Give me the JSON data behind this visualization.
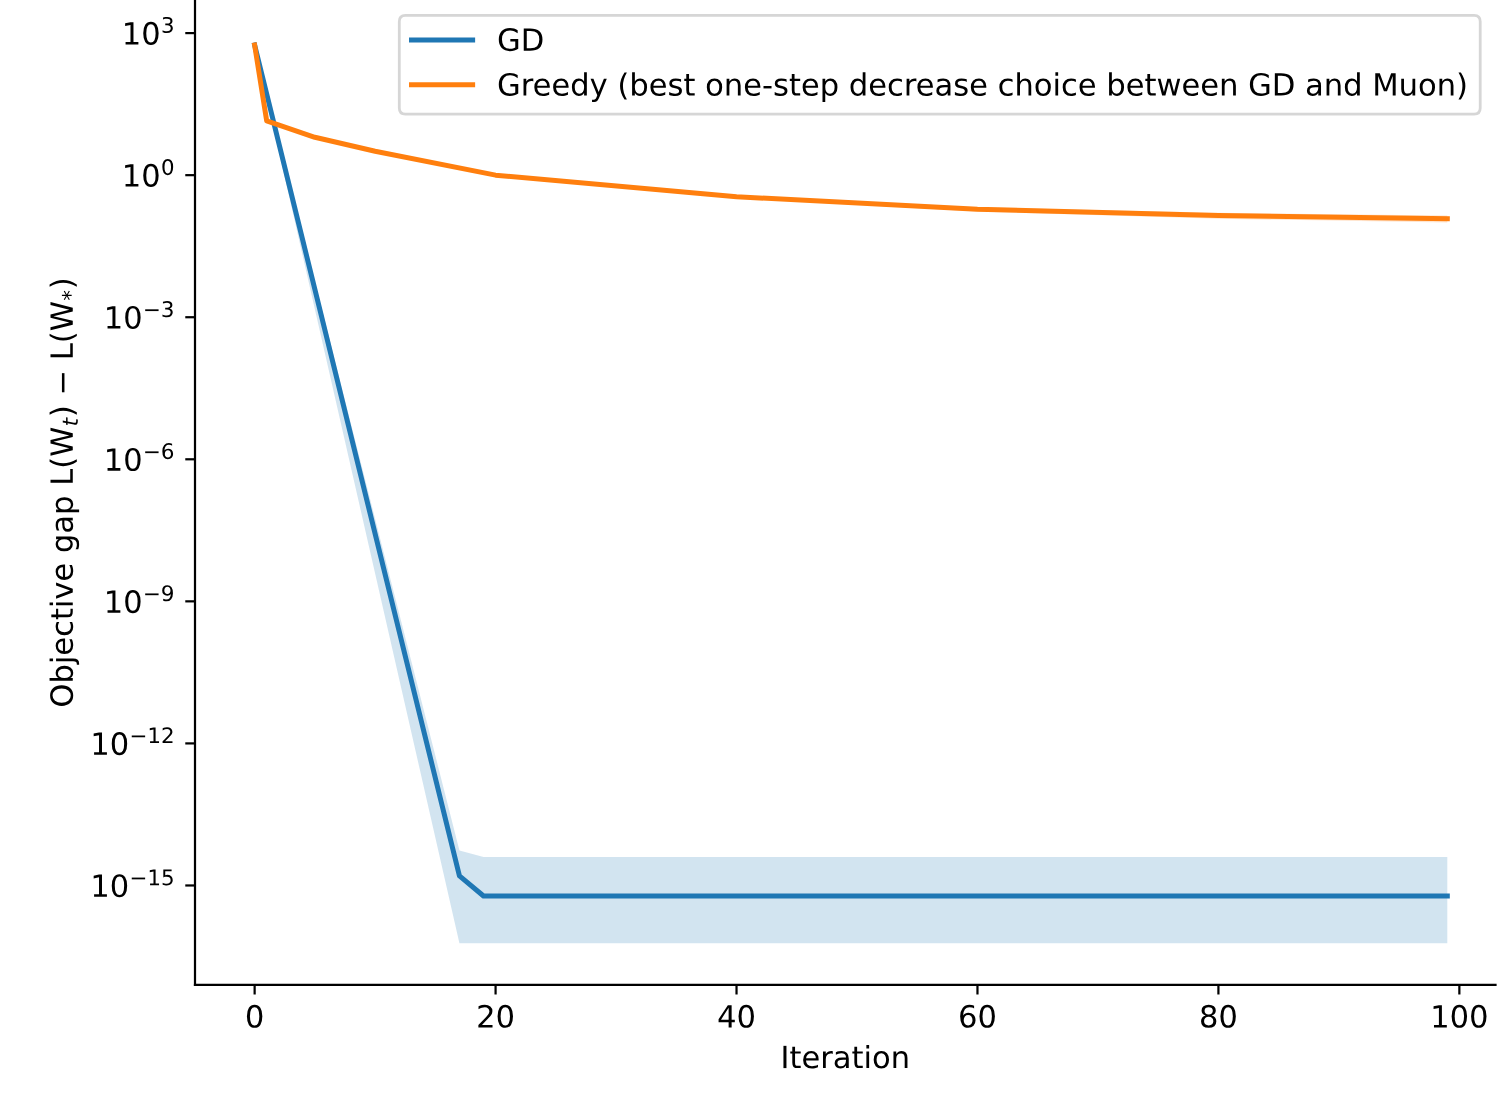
{
  "chart_data": {
    "type": "line",
    "xlabel": "Iteration",
    "ylabel": "Objective gap L(W$_{t}$) − L(W$_{*}$)",
    "series": [
      {
        "name": "GD",
        "color": "#1f77b4",
        "x": [
          0,
          17,
          19,
          99
        ],
        "values": [
          560,
          1.6e-15,
          6e-16,
          6e-16
        ],
        "lower": [
          560,
          6e-17,
          6e-17,
          6e-17
        ],
        "upper": [
          560,
          5.5e-15,
          4e-15,
          4e-15
        ]
      },
      {
        "name": "Greedy (best one-step decrease choice between GD and Muon)",
        "color": "#ff7f0e",
        "x": [
          0,
          1,
          5,
          10,
          20,
          40,
          60,
          80,
          99
        ],
        "values": [
          560,
          14,
          6.3,
          3.2,
          1.0,
          0.35,
          0.19,
          0.14,
          0.12
        ],
        "lower": [
          560,
          14,
          6.2,
          3.1,
          0.97,
          0.33,
          0.17,
          0.12,
          0.1
        ],
        "upper": [
          560,
          14,
          6.4,
          3.3,
          1.03,
          0.37,
          0.21,
          0.16,
          0.14
        ]
      }
    ],
    "log": "y",
    "xlim": [
      -4.95,
      103
    ],
    "ylim": [
      8e-18,
      5000
    ],
    "xticks": [
      0,
      20,
      40,
      60,
      80,
      100
    ],
    "yticks": [
      {
        "value": 1e-15,
        "label": "10$^{−15}$"
      },
      {
        "value": 1e-12,
        "label": "10$^{−12}$"
      },
      {
        "value": 1e-09,
        "label": "10$^{−9}$"
      },
      {
        "value": 1e-06,
        "label": "10$^{−6}$"
      },
      {
        "value": 0.001,
        "label": "10$^{−3}$"
      },
      {
        "value": 1,
        "label": "10$^{0}$"
      },
      {
        "value": 1000,
        "label": "10$^{3}$"
      }
    ],
    "legend": "top right",
    "grid": false
  }
}
